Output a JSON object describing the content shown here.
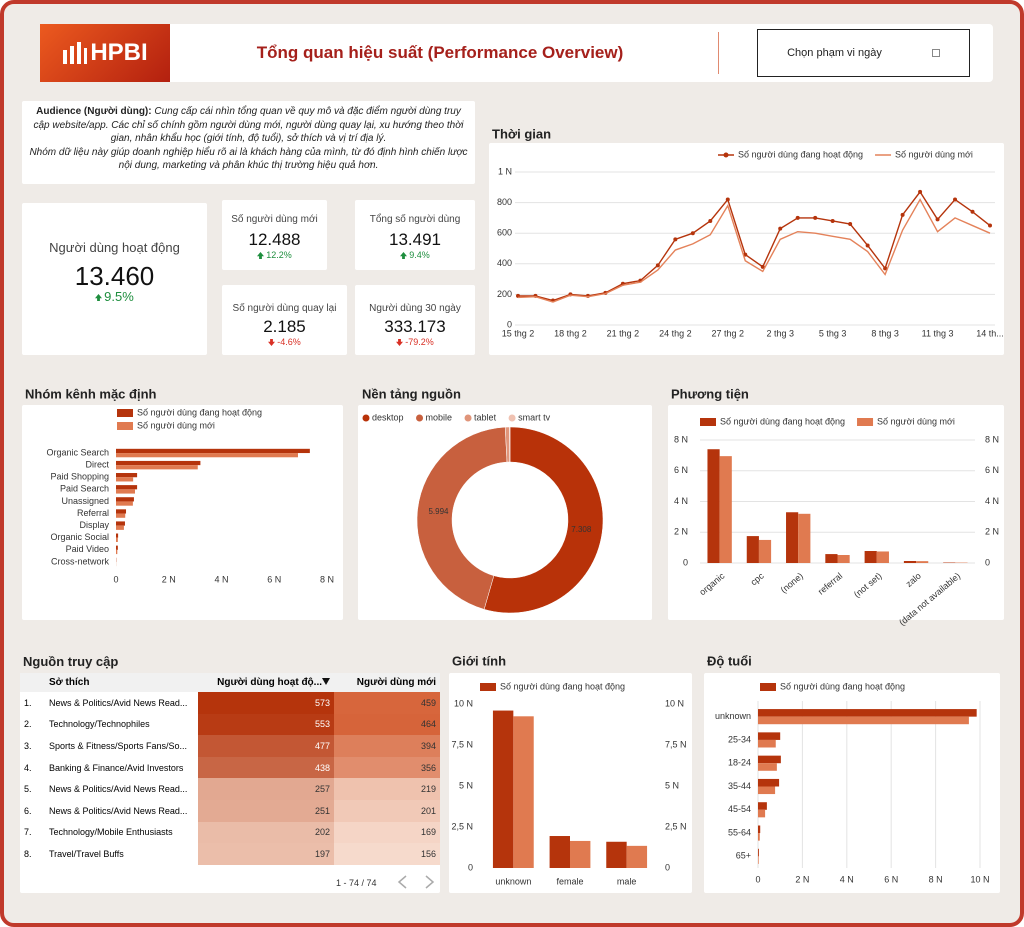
{
  "header": {
    "logo": "HPBI",
    "title": "Tổng quan hiệu suất (Performance Overview)",
    "date_button": "Chọn phạm vi ngày"
  },
  "audience": {
    "label": "Audience (Người dùng):",
    "lines": [
      "Cung cấp cái nhìn tổng quan về quy mô và đặc điểm người dùng truy cập website/app. Các chỉ số chính gồm người dùng mới, người dùng quay lại, xu hướng theo thời gian, nhân khẩu học (giới tính, độ tuổi), sở thích và vị trí địa lý.",
      "Nhóm dữ liệu này giúp doanh nghiệp hiểu rõ ai là khách hàng của mình, từ đó định hình chiến lược nội dung, marketing và phân khúc thị trường hiệu quả hơn."
    ]
  },
  "kpis": [
    {
      "label": "Người dùng hoạt động",
      "value": "13.460",
      "delta": "9.5%"
    },
    {
      "label": "Số người dùng mới",
      "value": "12.488",
      "delta": "12.2%"
    },
    {
      "label": "Tổng số người dùng",
      "value": "13.491",
      "delta": "9.4%"
    },
    {
      "label": "Số người dùng quay lại",
      "value": "2.185",
      "delta": "-4.6%"
    },
    {
      "label": "Người dùng 30 ngày",
      "value": "333.173",
      "delta": "-79.2%"
    }
  ],
  "chart_data": [
    {
      "type": "line",
      "title": "Thời gian",
      "categories": [
        "15 thg 2",
        null,
        null,
        "18 thg 2",
        null,
        null,
        "21 thg 2",
        null,
        null,
        "24 thg 2",
        null,
        null,
        "27 thg 2",
        null,
        null,
        "2 thg 3",
        null,
        null,
        "5 thg 3",
        null,
        null,
        "8 thg 3",
        null,
        null,
        "11 thg 3",
        null,
        null,
        "14 th..."
      ],
      "series": [
        {
          "name": "Số người dùng đang hoạt động",
          "color": "#b5340c",
          "markers": true,
          "values": [
            190,
            190,
            160,
            200,
            190,
            210,
            270,
            290,
            390,
            560,
            600,
            680,
            820,
            460,
            380,
            630,
            700,
            700,
            680,
            660,
            520,
            370,
            720,
            870,
            690,
            820,
            740,
            650
          ]
        },
        {
          "name": "Số người dùng mới",
          "color": "#e4825a",
          "markers": false,
          "values": [
            180,
            185,
            150,
            195,
            185,
            205,
            260,
            280,
            360,
            490,
            530,
            590,
            780,
            420,
            350,
            560,
            610,
            600,
            580,
            560,
            480,
            330,
            620,
            820,
            610,
            700,
            650,
            600
          ]
        }
      ],
      "ylim": [
        0,
        1000
      ],
      "yticks": [
        0,
        200,
        400,
        600,
        800,
        {
          "value": 1000,
          "label": "1 N"
        }
      ],
      "grid": true,
      "legend": "top-right"
    },
    {
      "type": "bar",
      "orientation": "horizontal",
      "title": "Nhóm kênh mặc định",
      "categories": [
        "Organic Search",
        "Direct",
        "Paid Shopping",
        "Paid Search",
        "Unassigned",
        "Referral",
        "Display",
        "Organic Social",
        "Paid Video",
        "Cross-network"
      ],
      "series": [
        {
          "name": "Số người dùng đang hoạt động",
          "color": "#b5340c",
          "values": [
            7350,
            3200,
            800,
            800,
            680,
            380,
            340,
            80,
            70,
            10
          ]
        },
        {
          "name": "Số người dùng mới",
          "color": "#e07a50",
          "values": [
            6900,
            3100,
            650,
            720,
            640,
            350,
            300,
            70,
            50,
            5
          ]
        }
      ],
      "xlim": [
        0,
        8000
      ],
      "xticks": [
        0,
        {
          "value": 2000,
          "label": "2 N"
        },
        {
          "value": 4000,
          "label": "4 N"
        },
        {
          "value": 6000,
          "label": "6 N"
        },
        {
          "value": 8000,
          "label": "8 N"
        }
      ],
      "grid": false,
      "legend": "top-left"
    },
    {
      "type": "donut",
      "title": "Nền tảng nguồn",
      "categories": [
        "desktop",
        "mobile",
        "tablet",
        "smart tv"
      ],
      "values": [
        7308,
        5994,
        100,
        10
      ],
      "value_labels": [
        "7.308",
        "5.994",
        null,
        null
      ],
      "colors": [
        "#b83209",
        "#c8603e",
        "#e0957a",
        "#f0c2b2"
      ],
      "legend": "top-left"
    },
    {
      "type": "bar",
      "orientation": "vertical",
      "title": "Phương tiện",
      "categories": [
        "organic",
        "cpc",
        "(none)",
        "referral",
        "(not set)",
        "zalo",
        "(data not available)"
      ],
      "series": [
        {
          "name": "Số người dùng đang hoạt động",
          "color": "#b5340c",
          "values": [
            7400,
            1750,
            3300,
            580,
            780,
            130,
            30
          ]
        },
        {
          "name": "Số người dùng mới",
          "color": "#e07a50",
          "values": [
            6950,
            1500,
            3200,
            520,
            750,
            120,
            25
          ]
        }
      ],
      "ylim": [
        0,
        8000
      ],
      "yticks": [
        0,
        {
          "value": 2000,
          "label": "2 N"
        },
        {
          "value": 4000,
          "label": "4 N"
        },
        {
          "value": 6000,
          "label": "6 N"
        },
        {
          "value": 8000,
          "label": "8 N"
        }
      ],
      "y2lim": [
        0,
        8000
      ],
      "y2ticks": [
        0,
        {
          "value": 2000,
          "label": "2 N"
        },
        {
          "value": 4000,
          "label": "4 N"
        },
        {
          "value": 6000,
          "label": "6 N"
        },
        {
          "value": 8000,
          "label": "8 N"
        }
      ],
      "grid": true,
      "legend": "top-left"
    },
    {
      "type": "bar",
      "orientation": "vertical",
      "title": "Giới tính",
      "categories": [
        "unknown",
        "female",
        "male"
      ],
      "series": [
        {
          "name": "Số người dùng đang hoạt động",
          "color": "#b5340c",
          "values": [
            9600,
            1950,
            1600
          ]
        },
        {
          "color": "#e07a50",
          "values": [
            9250,
            1650,
            1350
          ]
        }
      ],
      "ylim": [
        0,
        10000
      ],
      "yticks": [
        0,
        {
          "value": 2500,
          "label": "2,5 N"
        },
        {
          "value": 5000,
          "label": "5 N"
        },
        {
          "value": 7500,
          "label": "7,5 N"
        },
        {
          "value": 10000,
          "label": "10 N"
        }
      ],
      "y2lim": [
        0,
        10000
      ],
      "y2ticks": [
        0,
        {
          "value": 2500,
          "label": "2,5 N"
        },
        {
          "value": 5000,
          "label": "5 N"
        },
        {
          "value": 7500,
          "label": "7,5 N"
        },
        {
          "value": 10000,
          "label": "10 N"
        }
      ],
      "grid": false,
      "legend": "top-left"
    },
    {
      "type": "bar",
      "orientation": "horizontal",
      "title": "Độ tuổi",
      "categories": [
        "unknown",
        "25-34",
        "18-24",
        "35-44",
        "45-54",
        "55-64",
        "65+"
      ],
      "series": [
        {
          "name": "Số người dùng đang hoạt động",
          "color": "#b5340c",
          "values": [
            9850,
            1000,
            1030,
            950,
            400,
            100,
            40
          ]
        },
        {
          "color": "#e07a50",
          "values": [
            9500,
            800,
            850,
            770,
            320,
            80,
            30
          ]
        }
      ],
      "xlim": [
        0,
        10000
      ],
      "xticks": [
        0,
        {
          "value": 2000,
          "label": "2 N"
        },
        {
          "value": 4000,
          "label": "4 N"
        },
        {
          "value": 6000,
          "label": "6 N"
        },
        {
          "value": 8000,
          "label": "8 N"
        },
        {
          "value": 10000,
          "label": "10 N"
        }
      ],
      "grid": true,
      "legend": "top-left"
    }
  ],
  "table": {
    "title": "Nguồn truy cập",
    "columns": [
      "Sở thích",
      "Người dùng hoạt độ...",
      "Người dùng mới"
    ],
    "rows": [
      [
        "1.",
        "News & Politics/Avid News Read...",
        573,
        459
      ],
      [
        "2.",
        "Technology/Technophiles",
        553,
        464
      ],
      [
        "3.",
        "Sports & Fitness/Sports Fans/So...",
        477,
        394
      ],
      [
        "4.",
        "Banking & Finance/Avid Investors",
        438,
        356
      ],
      [
        "5.",
        "News & Politics/Avid News Read...",
        257,
        219
      ],
      [
        "6.",
        "News & Politics/Avid News Read...",
        251,
        201
      ],
      [
        "7.",
        "Technology/Mobile Enthusiasts",
        202,
        169
      ],
      [
        "8.",
        "Travel/Travel Buffs",
        197,
        156
      ]
    ],
    "pagination": "1 - 74 / 74"
  }
}
